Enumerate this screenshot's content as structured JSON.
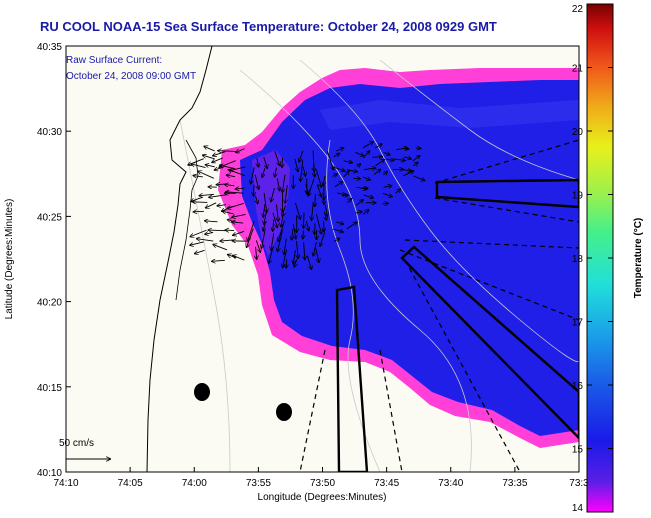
{
  "chart_data": {
    "type": "heatmap",
    "title": "RU COOL  NOAA-15  Sea Surface Temperature:  October 24, 2008 0929 GMT",
    "xlabel": "Longitude (Degrees:Minutes)",
    "ylabel": "Latitude (Degrees:Minutes)",
    "x_ticks": [
      "74:10",
      "74:05",
      "74:00",
      "73:55",
      "73:50",
      "73:45",
      "73:40",
      "73:35",
      "73:3"
    ],
    "y_ticks": [
      "40:35",
      "40:30",
      "40:25",
      "40:20",
      "40:15",
      "40:10"
    ],
    "xlim": [
      -74.1667,
      -73.5
    ],
    "ylim": [
      40.1667,
      40.5833
    ],
    "colorbar": {
      "label": "Temperature (°C)",
      "ticks": [
        "22",
        "21",
        "20",
        "19",
        "18",
        "17",
        "16",
        "15",
        "14"
      ],
      "range": [
        14,
        22
      ]
    },
    "current_note": [
      "Raw Surface Current:",
      "October 24, 2008 09:00 GMT"
    ],
    "scale_label": "50 cm/s",
    "sst_typical_c": 15,
    "sst_nearshore_edge_c": 14,
    "grid": false
  }
}
